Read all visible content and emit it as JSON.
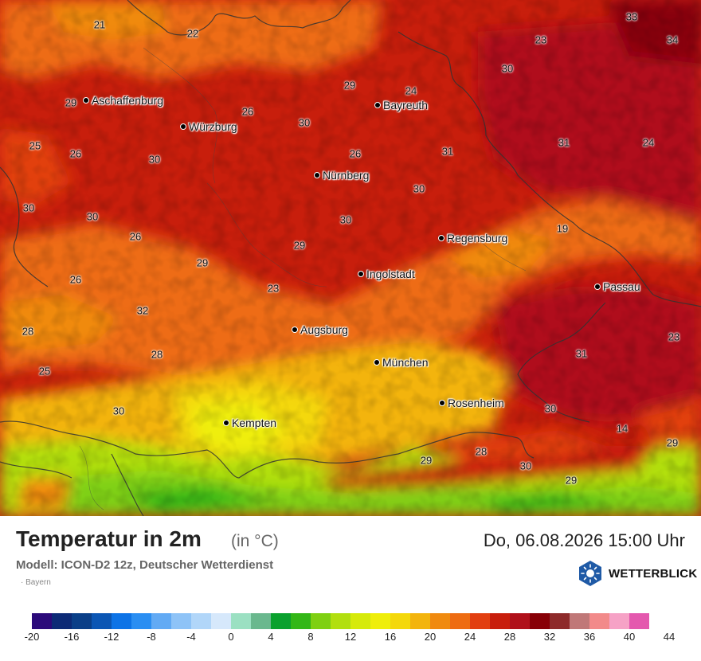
{
  "map": {
    "cities": [
      {
        "name": "Aschaffenburg",
        "key": "aschaffenburg"
      },
      {
        "name": "Würzburg",
        "key": "wuerzburg"
      },
      {
        "name": "Bayreuth",
        "key": "bayreuth"
      },
      {
        "name": "Nürnberg",
        "key": "nuernberg"
      },
      {
        "name": "Regensburg",
        "key": "regensburg"
      },
      {
        "name": "Ingolstadt",
        "key": "ingolstadt"
      },
      {
        "name": "Passau",
        "key": "passau"
      },
      {
        "name": "Augsburg",
        "key": "augsburg"
      },
      {
        "name": "München",
        "key": "muenchen"
      },
      {
        "name": "Rosenheim",
        "key": "rosenheim"
      },
      {
        "name": "Kempten",
        "key": "kempten"
      }
    ],
    "values": [
      "21",
      "22",
      "33",
      "34",
      "23",
      "30",
      "29",
      "24",
      "29",
      "26",
      "30",
      "31",
      "24",
      "25",
      "26",
      "30",
      "26",
      "31",
      "30",
      "30",
      "30",
      "19",
      "26",
      "30",
      "29",
      "29",
      "26",
      "23",
      "32",
      "28",
      "28",
      "31",
      "23",
      "25",
      "30",
      "30",
      "14",
      "29",
      "28",
      "29",
      "30",
      "29"
    ]
  },
  "footer": {
    "title": "Temperatur in 2m",
    "unit": "(in °C)",
    "datetime": "Do, 06.08.2026 15:00 Uhr",
    "model": "Modell: ICON-D2 12z, Deutscher Wetterdienst",
    "region": "Bayern",
    "logo": "WETTERBLICK"
  },
  "legend": {
    "colors": [
      "#2b0a7a",
      "#0c2a76",
      "#0a3f88",
      "#0b56b4",
      "#0d73e6",
      "#2a8ef2",
      "#62aaf4",
      "#8ec3f7",
      "#b1d6f9",
      "#d6e8fb",
      "#9be0c2",
      "#6ab88e",
      "#0aa12e",
      "#33b717",
      "#7fd012",
      "#b2df0f",
      "#d6ea0a",
      "#efee0a",
      "#f4d80a",
      "#f3b40d",
      "#f08a0f",
      "#ee6c12",
      "#e23f10",
      "#c81e0c",
      "#b0101a",
      "#880007",
      "#8e2a2a",
      "#c07878",
      "#f28a8a",
      "#f6a2c6",
      "#e458ae"
    ],
    "ticks": [
      "-20",
      "-16",
      "-12",
      "-8",
      "-4",
      "0",
      "4",
      "8",
      "12",
      "16",
      "20",
      "24",
      "28",
      "32",
      "36",
      "40",
      "44"
    ]
  }
}
